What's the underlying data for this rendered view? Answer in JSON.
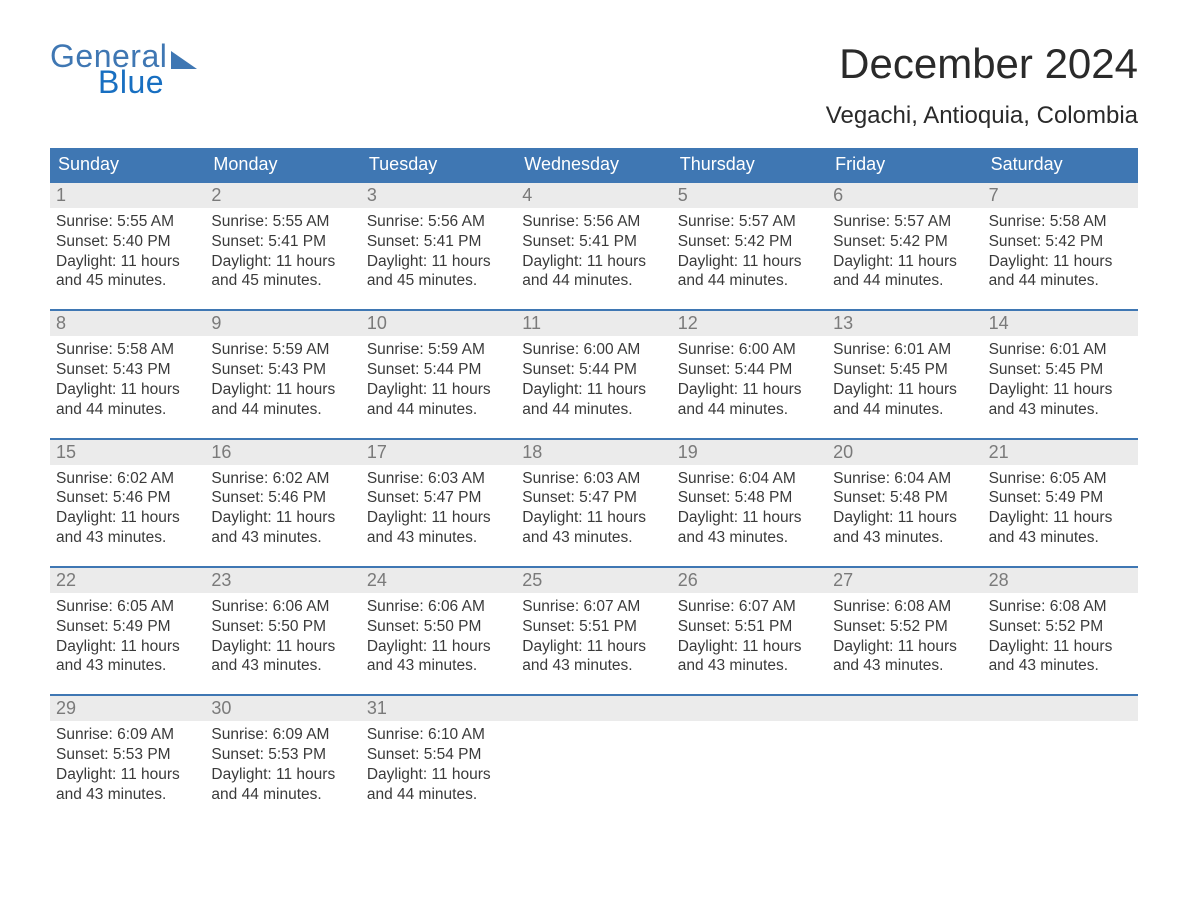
{
  "brand": {
    "word1": "General",
    "word2": "Blue"
  },
  "title": "December 2024",
  "location": "Vegachi, Antioquia, Colombia",
  "colors": {
    "header_bg": "#3f77b3",
    "header_text": "#ffffff",
    "daynum_bg": "#ebebeb",
    "daynum_text": "#7a7a7a",
    "body_text": "#3a3a3a",
    "rule": "#3f77b3",
    "logo": "#3f77b3",
    "logo_accent": "#186fc1",
    "page_bg": "#ffffff"
  },
  "typography": {
    "title_fontsize": 42,
    "location_fontsize": 24,
    "dow_fontsize": 18,
    "daynum_fontsize": 18,
    "body_fontsize": 15.5
  },
  "days_of_week": [
    "Sunday",
    "Monday",
    "Tuesday",
    "Wednesday",
    "Thursday",
    "Friday",
    "Saturday"
  ],
  "weeks": [
    [
      {
        "n": "1",
        "sunrise": "5:55 AM",
        "sunset": "5:40 PM",
        "daylight": "11 hours and 45 minutes."
      },
      {
        "n": "2",
        "sunrise": "5:55 AM",
        "sunset": "5:41 PM",
        "daylight": "11 hours and 45 minutes."
      },
      {
        "n": "3",
        "sunrise": "5:56 AM",
        "sunset": "5:41 PM",
        "daylight": "11 hours and 45 minutes."
      },
      {
        "n": "4",
        "sunrise": "5:56 AM",
        "sunset": "5:41 PM",
        "daylight": "11 hours and 44 minutes."
      },
      {
        "n": "5",
        "sunrise": "5:57 AM",
        "sunset": "5:42 PM",
        "daylight": "11 hours and 44 minutes."
      },
      {
        "n": "6",
        "sunrise": "5:57 AM",
        "sunset": "5:42 PM",
        "daylight": "11 hours and 44 minutes."
      },
      {
        "n": "7",
        "sunrise": "5:58 AM",
        "sunset": "5:42 PM",
        "daylight": "11 hours and 44 minutes."
      }
    ],
    [
      {
        "n": "8",
        "sunrise": "5:58 AM",
        "sunset": "5:43 PM",
        "daylight": "11 hours and 44 minutes."
      },
      {
        "n": "9",
        "sunrise": "5:59 AM",
        "sunset": "5:43 PM",
        "daylight": "11 hours and 44 minutes."
      },
      {
        "n": "10",
        "sunrise": "5:59 AM",
        "sunset": "5:44 PM",
        "daylight": "11 hours and 44 minutes."
      },
      {
        "n": "11",
        "sunrise": "6:00 AM",
        "sunset": "5:44 PM",
        "daylight": "11 hours and 44 minutes."
      },
      {
        "n": "12",
        "sunrise": "6:00 AM",
        "sunset": "5:44 PM",
        "daylight": "11 hours and 44 minutes."
      },
      {
        "n": "13",
        "sunrise": "6:01 AM",
        "sunset": "5:45 PM",
        "daylight": "11 hours and 44 minutes."
      },
      {
        "n": "14",
        "sunrise": "6:01 AM",
        "sunset": "5:45 PM",
        "daylight": "11 hours and 43 minutes."
      }
    ],
    [
      {
        "n": "15",
        "sunrise": "6:02 AM",
        "sunset": "5:46 PM",
        "daylight": "11 hours and 43 minutes."
      },
      {
        "n": "16",
        "sunrise": "6:02 AM",
        "sunset": "5:46 PM",
        "daylight": "11 hours and 43 minutes."
      },
      {
        "n": "17",
        "sunrise": "6:03 AM",
        "sunset": "5:47 PM",
        "daylight": "11 hours and 43 minutes."
      },
      {
        "n": "18",
        "sunrise": "6:03 AM",
        "sunset": "5:47 PM",
        "daylight": "11 hours and 43 minutes."
      },
      {
        "n": "19",
        "sunrise": "6:04 AM",
        "sunset": "5:48 PM",
        "daylight": "11 hours and 43 minutes."
      },
      {
        "n": "20",
        "sunrise": "6:04 AM",
        "sunset": "5:48 PM",
        "daylight": "11 hours and 43 minutes."
      },
      {
        "n": "21",
        "sunrise": "6:05 AM",
        "sunset": "5:49 PM",
        "daylight": "11 hours and 43 minutes."
      }
    ],
    [
      {
        "n": "22",
        "sunrise": "6:05 AM",
        "sunset": "5:49 PM",
        "daylight": "11 hours and 43 minutes."
      },
      {
        "n": "23",
        "sunrise": "6:06 AM",
        "sunset": "5:50 PM",
        "daylight": "11 hours and 43 minutes."
      },
      {
        "n": "24",
        "sunrise": "6:06 AM",
        "sunset": "5:50 PM",
        "daylight": "11 hours and 43 minutes."
      },
      {
        "n": "25",
        "sunrise": "6:07 AM",
        "sunset": "5:51 PM",
        "daylight": "11 hours and 43 minutes."
      },
      {
        "n": "26",
        "sunrise": "6:07 AM",
        "sunset": "5:51 PM",
        "daylight": "11 hours and 43 minutes."
      },
      {
        "n": "27",
        "sunrise": "6:08 AM",
        "sunset": "5:52 PM",
        "daylight": "11 hours and 43 minutes."
      },
      {
        "n": "28",
        "sunrise": "6:08 AM",
        "sunset": "5:52 PM",
        "daylight": "11 hours and 43 minutes."
      }
    ],
    [
      {
        "n": "29",
        "sunrise": "6:09 AM",
        "sunset": "5:53 PM",
        "daylight": "11 hours and 43 minutes."
      },
      {
        "n": "30",
        "sunrise": "6:09 AM",
        "sunset": "5:53 PM",
        "daylight": "11 hours and 44 minutes."
      },
      {
        "n": "31",
        "sunrise": "6:10 AM",
        "sunset": "5:54 PM",
        "daylight": "11 hours and 44 minutes."
      },
      null,
      null,
      null,
      null
    ]
  ],
  "labels": {
    "sunrise": "Sunrise:",
    "sunset": "Sunset:",
    "daylight": "Daylight:"
  }
}
